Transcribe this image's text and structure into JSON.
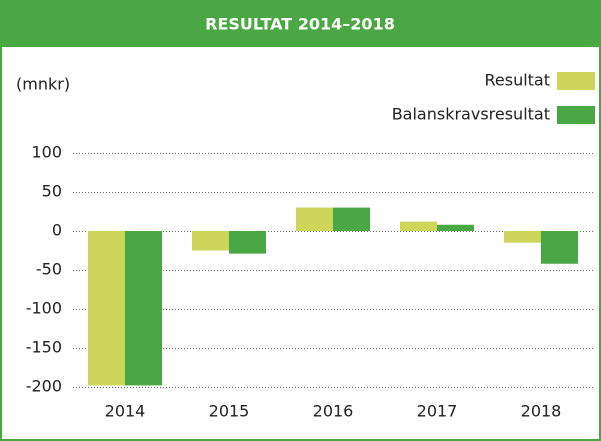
{
  "chart_data": {
    "type": "bar",
    "title": "RESULTAT 2014–2018",
    "y_axis_label": "(mnkr)",
    "categories": [
      "2014",
      "2015",
      "2016",
      "2017",
      "2018"
    ],
    "series": [
      {
        "name": "Resultat",
        "color": "#cdd65a",
        "values": [
          -198,
          -25,
          30,
          12,
          -15
        ]
      },
      {
        "name": "Balanskravsresultat",
        "color": "#4aa844",
        "values": [
          -198,
          -29,
          30,
          8,
          -42
        ]
      }
    ],
    "ylim": [
      -200,
      100
    ],
    "yticks": [
      -200,
      -150,
      -100,
      -50,
      0,
      50,
      100
    ],
    "grid": true,
    "legend": "top-right"
  }
}
